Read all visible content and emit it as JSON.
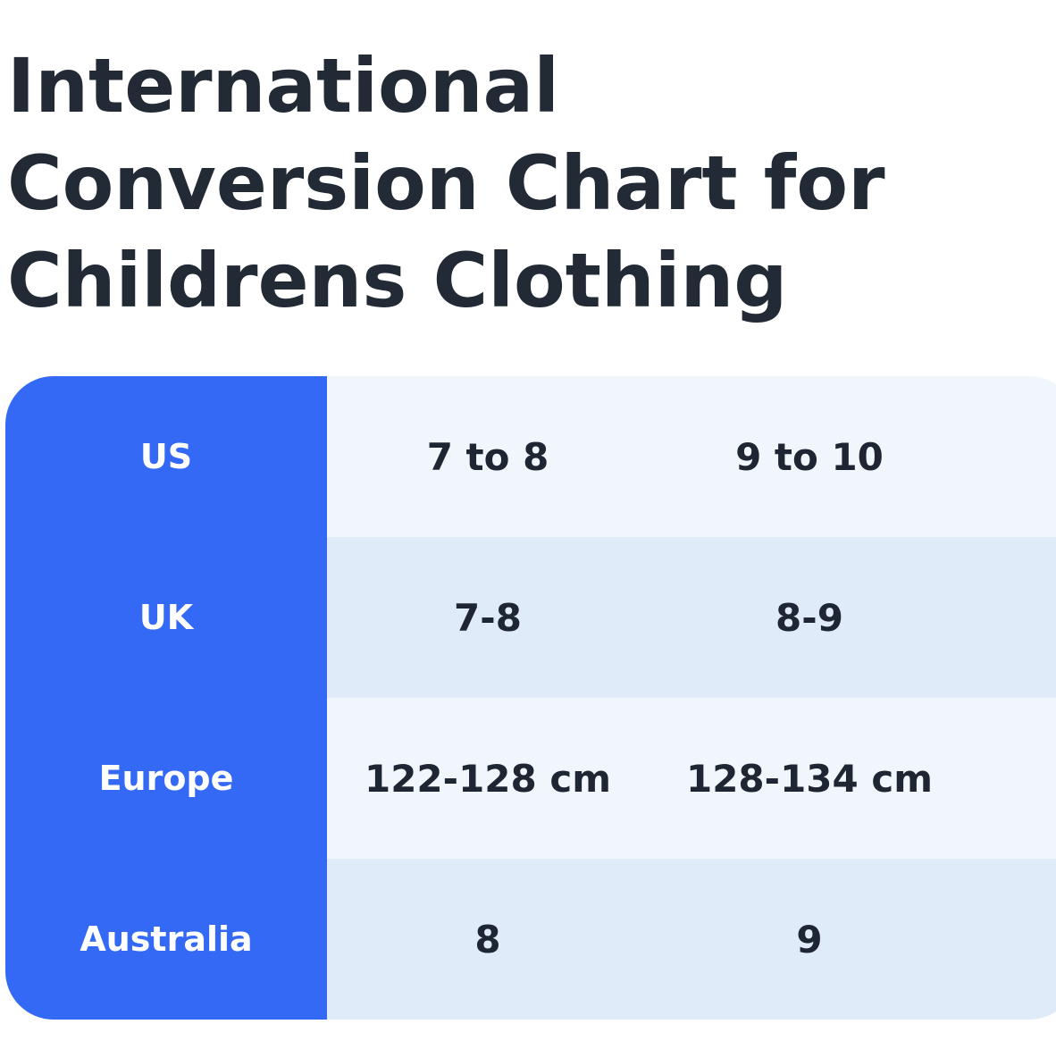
{
  "page": {
    "title": "International Conversion Chart for Childrens Clothing"
  },
  "table": {
    "rows": [
      {
        "label": "US",
        "values": [
          "7 to 8",
          "9 to 10"
        ],
        "partial": ""
      },
      {
        "label": "UK",
        "values": [
          "7-8",
          "8-9"
        ],
        "partial": ""
      },
      {
        "label": "Europe",
        "values": [
          "122-128 cm",
          "128-134 cm"
        ],
        "partial": "1"
      },
      {
        "label": "Australia",
        "values": [
          "8",
          "9"
        ],
        "partial": ""
      }
    ]
  },
  "colors": {
    "header_column": "#3469f6",
    "row_light": "#f1f6fd",
    "row_dark": "#e0ebfa",
    "text": "#222a35"
  }
}
